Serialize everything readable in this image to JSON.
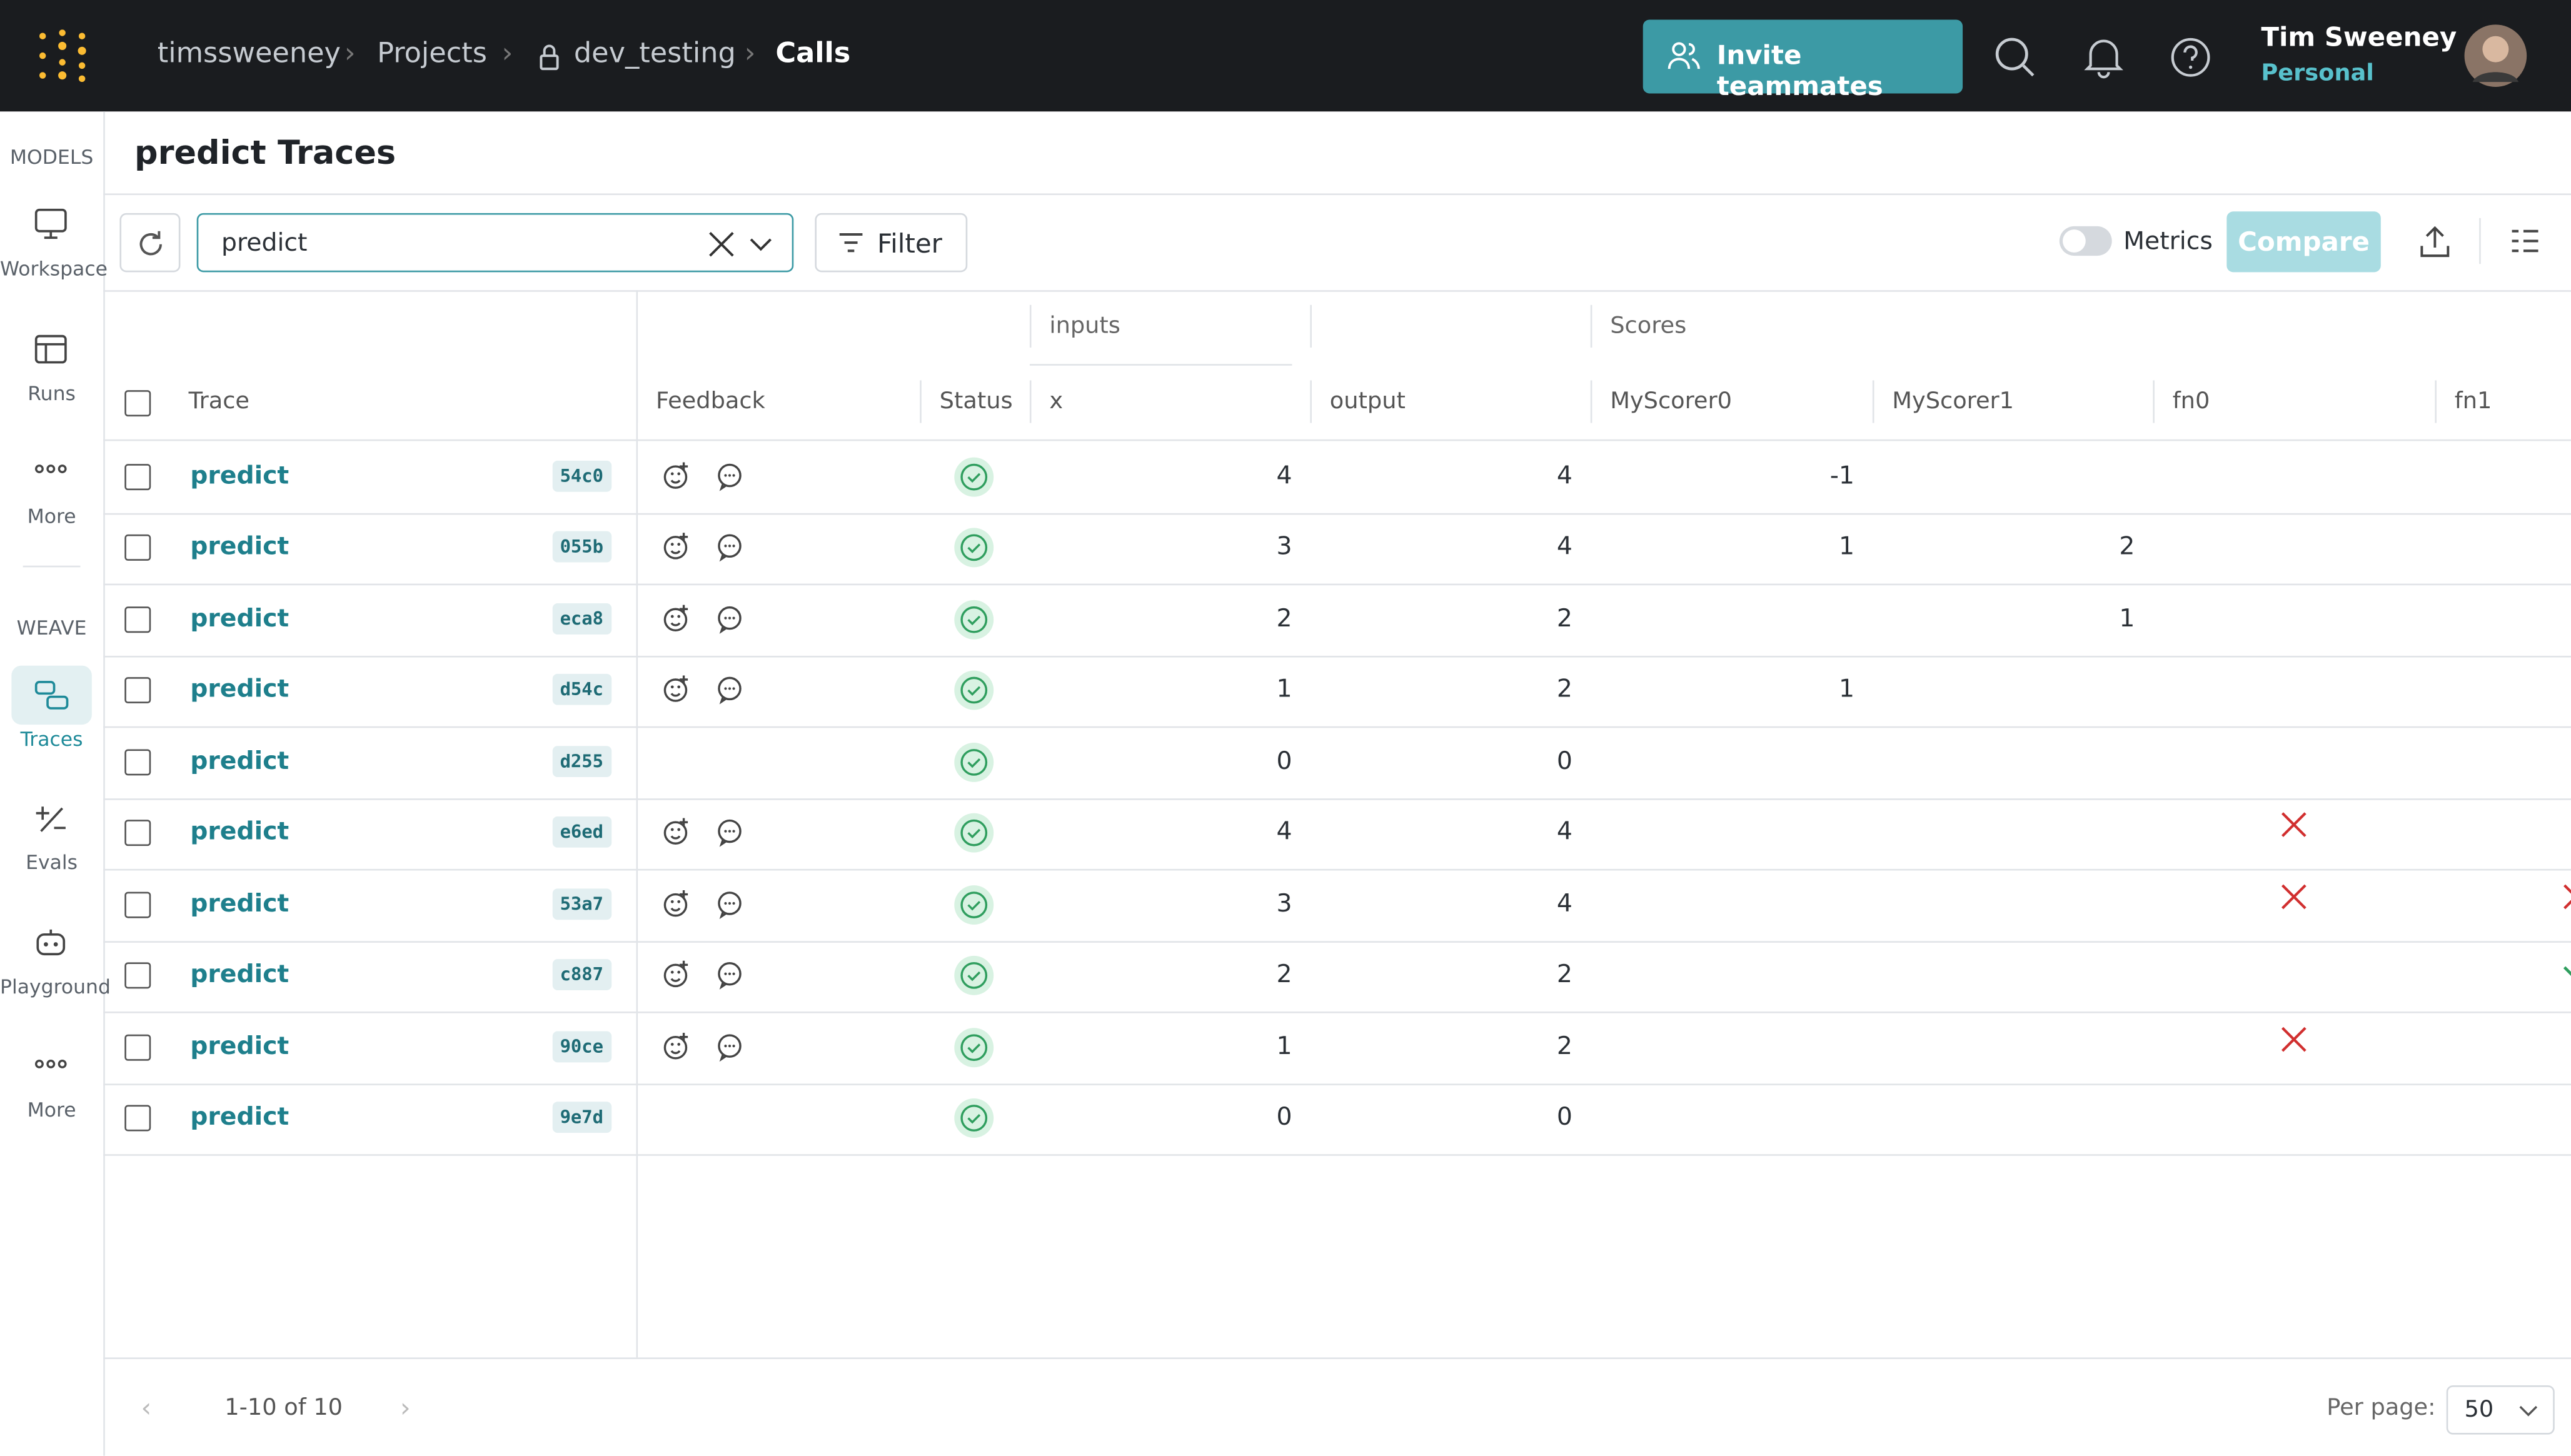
{
  "breadcrumb": [
    "timssweeney",
    "Projects",
    "dev_testing",
    "Calls"
  ],
  "header": {
    "invite": "Invite teammates",
    "user_name": "Tim Sweeney",
    "user_plan": "Personal"
  },
  "sidebar": {
    "models_label": "MODELS",
    "models_items": [
      "Workspace",
      "Runs",
      "More"
    ],
    "weave_label": "WEAVE",
    "weave_items": [
      "Traces",
      "Evals",
      "Playground",
      "More"
    ]
  },
  "page_title": "predict Traces",
  "toolbar": {
    "search": "predict",
    "filter": "Filter",
    "metrics": "Metrics",
    "compare": "Compare"
  },
  "table": {
    "groups": {
      "inputs": "inputs",
      "scores": "Scores"
    },
    "columns": [
      "Trace",
      "Feedback",
      "Status",
      "x",
      "output",
      "MyScorer0",
      "MyScorer1",
      "fn0",
      "fn1"
    ],
    "rows": [
      {
        "name": "predict",
        "id": "54c0",
        "feedback": true,
        "x": 4,
        "output": 4,
        "MyScorer0": -1,
        "MyScorer1": null,
        "fn0": null,
        "fn1": null
      },
      {
        "name": "predict",
        "id": "055b",
        "feedback": true,
        "x": 3,
        "output": 4,
        "MyScorer0": 1,
        "MyScorer1": 2,
        "fn0": null,
        "fn1": null
      },
      {
        "name": "predict",
        "id": "eca8",
        "feedback": true,
        "x": 2,
        "output": 2,
        "MyScorer0": null,
        "MyScorer1": 1,
        "fn0": null,
        "fn1": null
      },
      {
        "name": "predict",
        "id": "d54c",
        "feedback": true,
        "x": 1,
        "output": 2,
        "MyScorer0": 1,
        "MyScorer1": null,
        "fn0": null,
        "fn1": null
      },
      {
        "name": "predict",
        "id": "d255",
        "feedback": false,
        "x": 0,
        "output": 0,
        "MyScorer0": null,
        "MyScorer1": null,
        "fn0": null,
        "fn1": null
      },
      {
        "name": "predict",
        "id": "e6ed",
        "feedback": true,
        "x": 4,
        "output": 4,
        "MyScorer0": null,
        "MyScorer1": null,
        "fn0": false,
        "fn1": null
      },
      {
        "name": "predict",
        "id": "53a7",
        "feedback": true,
        "x": 3,
        "output": 4,
        "MyScorer0": null,
        "MyScorer1": null,
        "fn0": false,
        "fn1": false
      },
      {
        "name": "predict",
        "id": "c887",
        "feedback": true,
        "x": 2,
        "output": 2,
        "MyScorer0": null,
        "MyScorer1": null,
        "fn0": null,
        "fn1": true
      },
      {
        "name": "predict",
        "id": "90ce",
        "feedback": true,
        "x": 1,
        "output": 2,
        "MyScorer0": null,
        "MyScorer1": null,
        "fn0": false,
        "fn1": null
      },
      {
        "name": "predict",
        "id": "9e7d",
        "feedback": false,
        "x": 0,
        "output": 0,
        "MyScorer0": null,
        "MyScorer1": null,
        "fn0": null,
        "fn1": null
      }
    ]
  },
  "footer": {
    "range": "1-10 of 10",
    "per_page_label": "Per page:",
    "per_page": "50"
  }
}
